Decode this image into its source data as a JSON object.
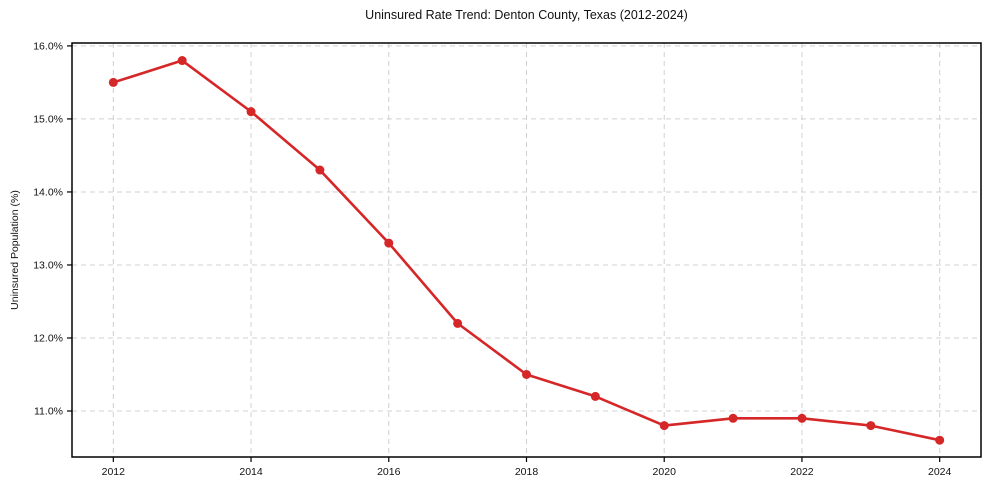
{
  "chart_data": {
    "type": "line",
    "title": "Uninsured Rate Trend: Denton County, Texas (2012-2024)",
    "xlabel": "",
    "ylabel": "Uninsured Population (%)",
    "x": [
      2012,
      2013,
      2014,
      2015,
      2016,
      2017,
      2018,
      2019,
      2020,
      2021,
      2022,
      2023,
      2024
    ],
    "values": [
      15.5,
      15.8,
      15.1,
      14.3,
      13.3,
      12.2,
      11.5,
      11.2,
      10.8,
      10.9,
      10.9,
      10.8,
      10.6
    ],
    "x_tick_values": [
      2012,
      2014,
      2016,
      2018,
      2020,
      2022,
      2024
    ],
    "x_tick_labels": [
      "2012",
      "2014",
      "2016",
      "2018",
      "2020",
      "2022",
      "2024"
    ],
    "y_tick_values": [
      11,
      12,
      13,
      14,
      15,
      16
    ],
    "y_tick_labels": [
      "11.0%",
      "12.0%",
      "13.0%",
      "14.0%",
      "15.0%",
      "16.0%"
    ],
    "xlim": [
      2011.4,
      2024.6
    ],
    "ylim": [
      10.37,
      16.04
    ],
    "grid": "dashed",
    "legend": "none",
    "line_color": "#d62728",
    "marker": "circle",
    "background_color": "#ffffff"
  }
}
